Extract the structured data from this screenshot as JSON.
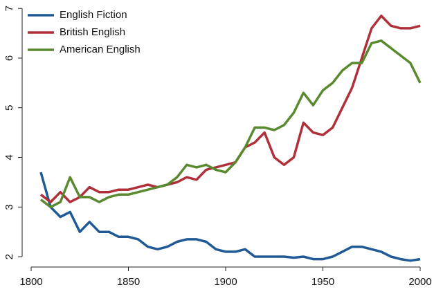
{
  "chart_data": {
    "type": "line",
    "x": [
      1805,
      1810,
      1815,
      1820,
      1825,
      1830,
      1835,
      1840,
      1845,
      1850,
      1855,
      1860,
      1865,
      1870,
      1875,
      1880,
      1885,
      1890,
      1895,
      1900,
      1905,
      1910,
      1915,
      1920,
      1925,
      1930,
      1935,
      1940,
      1945,
      1950,
      1955,
      1960,
      1965,
      1970,
      1975,
      1980,
      1985,
      1990,
      1995,
      2000
    ],
    "series": [
      {
        "name": "English Fiction",
        "color": "#1f5a96",
        "values": [
          3.7,
          3.0,
          2.8,
          2.9,
          2.5,
          2.7,
          2.5,
          2.5,
          2.4,
          2.4,
          2.35,
          2.2,
          2.15,
          2.2,
          2.3,
          2.35,
          2.35,
          2.3,
          2.15,
          2.1,
          2.1,
          2.15,
          2.0,
          2.0,
          2.0,
          2.0,
          1.98,
          2.0,
          1.95,
          1.95,
          2.0,
          2.1,
          2.2,
          2.2,
          2.15,
          2.1,
          2.0,
          1.95,
          1.92,
          1.95
        ]
      },
      {
        "name": "British English",
        "color": "#b0303a",
        "values": [
          3.25,
          3.1,
          3.3,
          3.1,
          3.2,
          3.4,
          3.3,
          3.3,
          3.35,
          3.35,
          3.4,
          3.45,
          3.4,
          3.45,
          3.5,
          3.6,
          3.55,
          3.75,
          3.8,
          3.85,
          3.9,
          4.2,
          4.3,
          4.5,
          4.0,
          3.85,
          4.0,
          4.7,
          4.5,
          4.45,
          4.6,
          5.0,
          5.4,
          6.0,
          6.6,
          6.85,
          6.65,
          6.6,
          6.6,
          6.65
        ]
      },
      {
        "name": "American English",
        "color": "#5a8a30",
        "values": [
          3.15,
          3.0,
          3.1,
          3.6,
          3.2,
          3.2,
          3.1,
          3.2,
          3.25,
          3.25,
          3.3,
          3.35,
          3.4,
          3.45,
          3.6,
          3.85,
          3.8,
          3.85,
          3.75,
          3.7,
          3.9,
          4.2,
          4.6,
          4.6,
          4.55,
          4.65,
          4.9,
          5.3,
          5.05,
          5.35,
          5.5,
          5.75,
          5.9,
          5.9,
          6.3,
          6.35,
          6.2,
          6.05,
          5.9,
          5.5
        ]
      }
    ],
    "xlim": [
      1800,
      2000
    ],
    "xticks": [
      1800,
      1850,
      1900,
      1950,
      2000
    ],
    "ylim": [
      1.8,
      7.1
    ],
    "yticks": [
      2,
      3,
      4,
      5,
      6,
      7
    ],
    "legend": "top-left"
  }
}
